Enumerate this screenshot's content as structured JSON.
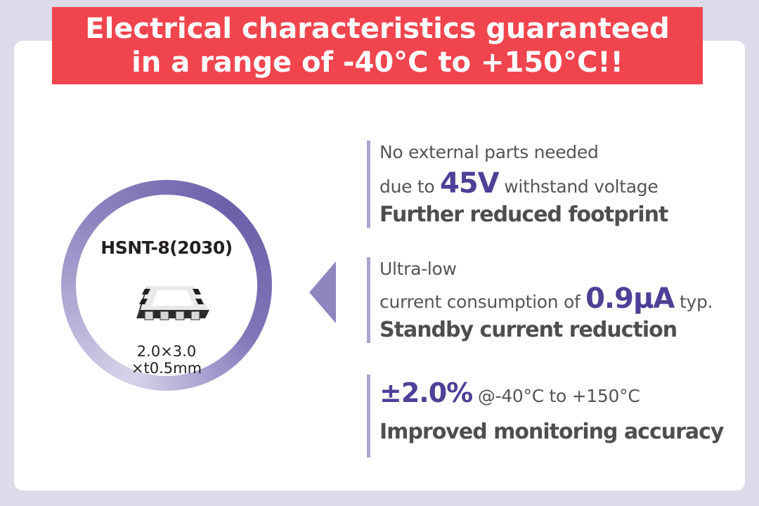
{
  "header": {
    "line1": "Electrical characteristics guaranteed",
    "line2": "in a range of -40°C to +150°C!!"
  },
  "package": {
    "name": "HSNT-8(2030)",
    "dimensions_line1": "2.0×3.0",
    "dimensions_line2": "×t0.5mm",
    "icon": "ic-chip-icon"
  },
  "features": [
    {
      "line1": "No external parts needed",
      "line2_prefix": "due to ",
      "highlight": "45V",
      "line2_suffix": " withstand voltage",
      "benefit": "Further reduced footprint"
    },
    {
      "line1": "Ultra-low",
      "line2_prefix": "current consumption of ",
      "highlight": "0.9μA",
      "line2_suffix": " typ.",
      "benefit": "Standby current reduction"
    },
    {
      "highlight": "±2.0%",
      "line1_suffix": " @-40°C to +150°C",
      "benefit": "Improved monitoring accuracy"
    }
  ],
  "colors": {
    "banner": "#f0454f",
    "accent": "#4e3f97",
    "ring": "#6b60a8",
    "background": "#dddbea"
  }
}
